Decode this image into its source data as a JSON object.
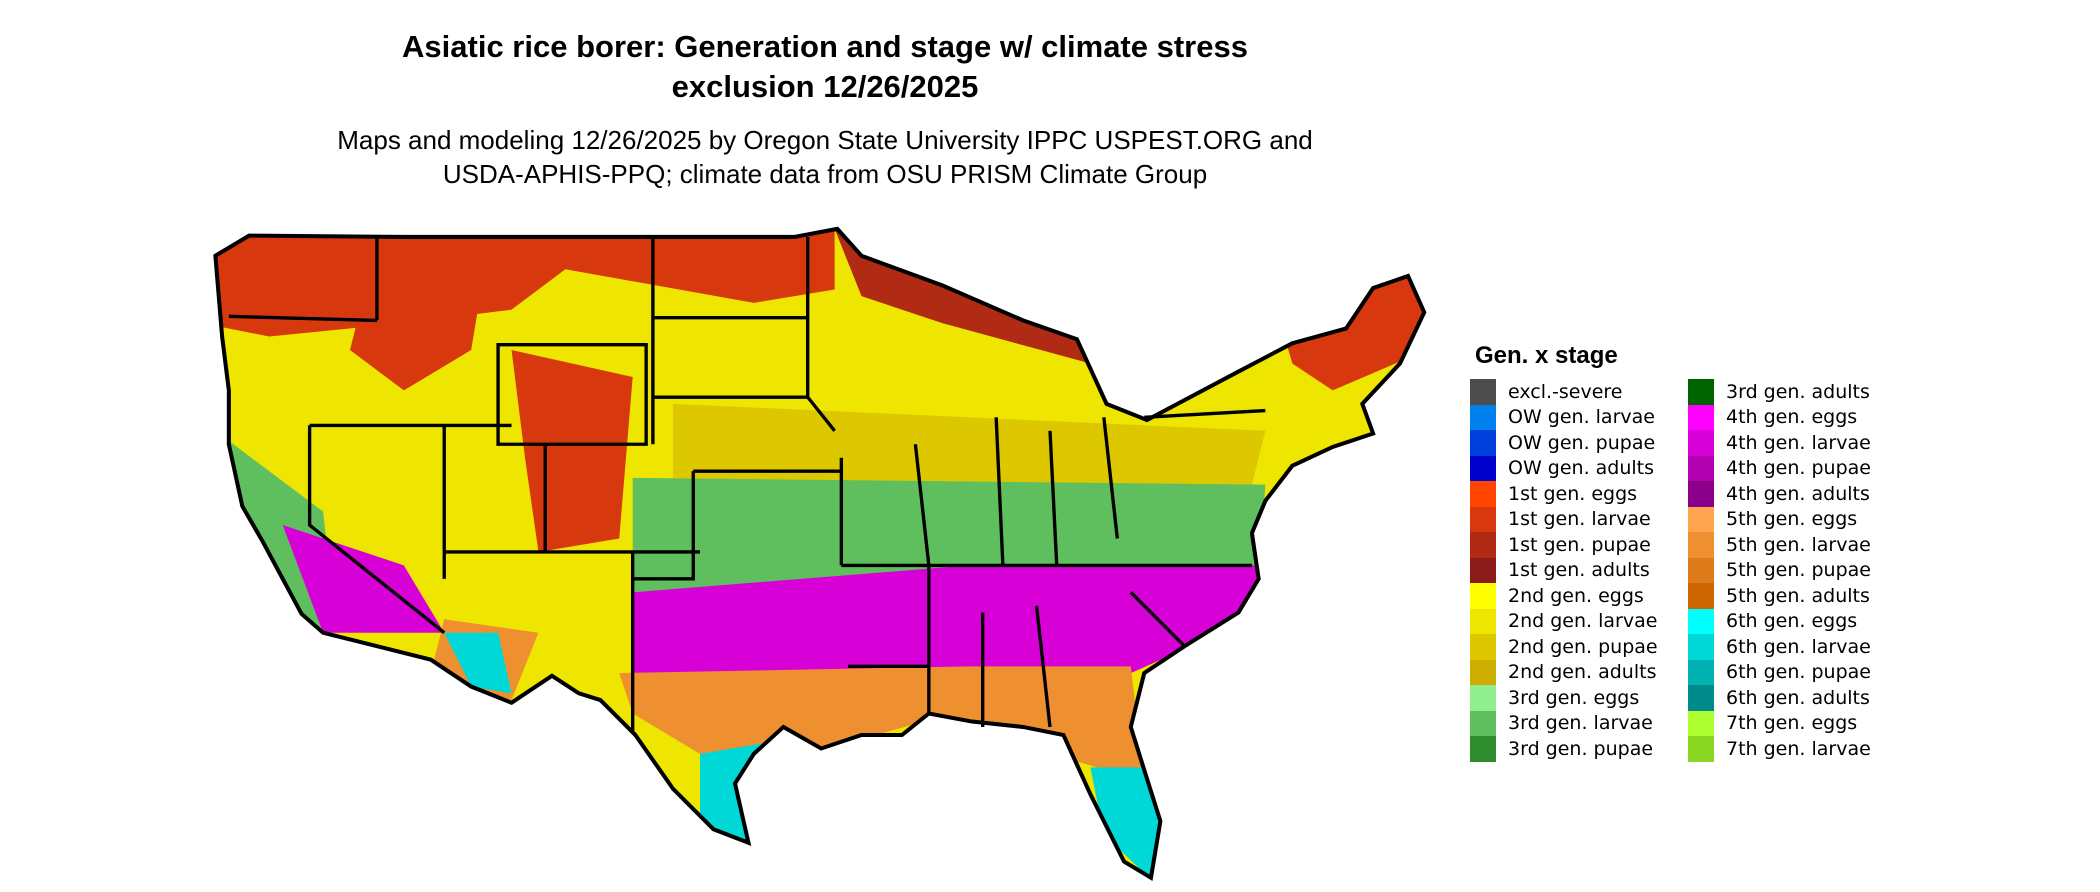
{
  "chart_data": {
    "type": "heatmap",
    "title": "Asiatic rice borer: Generation and stage w/ climate stress exclusion 12/26/2025",
    "title_lines": [
      "Asiatic rice borer: Generation and stage w/ climate stress",
      "exclusion 12/26/2025"
    ],
    "subtitle_lines": [
      "Maps and modeling 12/26/2025 by Oregon State University IPPC USPEST.ORG and",
      "USDA-APHIS-PPQ; climate data from OSU PRISM Climate Group"
    ],
    "legend": {
      "title": "Gen. x stage",
      "placement": "right",
      "items": [
        {
          "label": "excl.-severe",
          "color": "#4d4d4d"
        },
        {
          "label": "OW gen. larvae",
          "color": "#0080ee"
        },
        {
          "label": "OW gen. pupae",
          "color": "#0040dd"
        },
        {
          "label": "OW gen. adults",
          "color": "#0000cc"
        },
        {
          "label": "1st gen. eggs",
          "color": "#ff4500"
        },
        {
          "label": "1st gen. larvae",
          "color": "#d8380e"
        },
        {
          "label": "1st gen. pupae",
          "color": "#b02a14"
        },
        {
          "label": "1st gen. adults",
          "color": "#8b1a1a"
        },
        {
          "label": "2nd gen. eggs",
          "color": "#ffff00"
        },
        {
          "label": "2nd gen. larvae",
          "color": "#eee600"
        },
        {
          "label": "2nd gen. pupae",
          "color": "#ddc800"
        },
        {
          "label": "2nd gen. adults",
          "color": "#cdad00"
        },
        {
          "label": "3rd gen. eggs",
          "color": "#90ee90"
        },
        {
          "label": "3rd gen. larvae",
          "color": "#5fbf5f"
        },
        {
          "label": "3rd gen. pupae",
          "color": "#2e8b2e"
        },
        {
          "label": "3rd gen. adults",
          "color": "#006400"
        },
        {
          "label": "4th gen. eggs",
          "color": "#ff00ff"
        },
        {
          "label": "4th gen. larvae",
          "color": "#d700d7"
        },
        {
          "label": "4th gen. pupae",
          "color": "#b000b0"
        },
        {
          "label": "4th gen. adults",
          "color": "#8b008b"
        },
        {
          "label": "5th gen. eggs",
          "color": "#ffa54f"
        },
        {
          "label": "5th gen. larvae",
          "color": "#ee9030"
        },
        {
          "label": "5th gen. pupae",
          "color": "#dd7a1a"
        },
        {
          "label": "5th gen. adults",
          "color": "#cd6600"
        },
        {
          "label": "6th gen. eggs",
          "color": "#00ffff"
        },
        {
          "label": "6th gen. larvae",
          "color": "#00d8d8"
        },
        {
          "label": "6th gen. pupae",
          "color": "#00b2b2"
        },
        {
          "label": "6th gen. adults",
          "color": "#008b8b"
        },
        {
          "label": "7th gen. eggs",
          "color": "#adff2f"
        },
        {
          "label": "7th gen. larvae",
          "color": "#8bd620"
        }
      ]
    }
  }
}
